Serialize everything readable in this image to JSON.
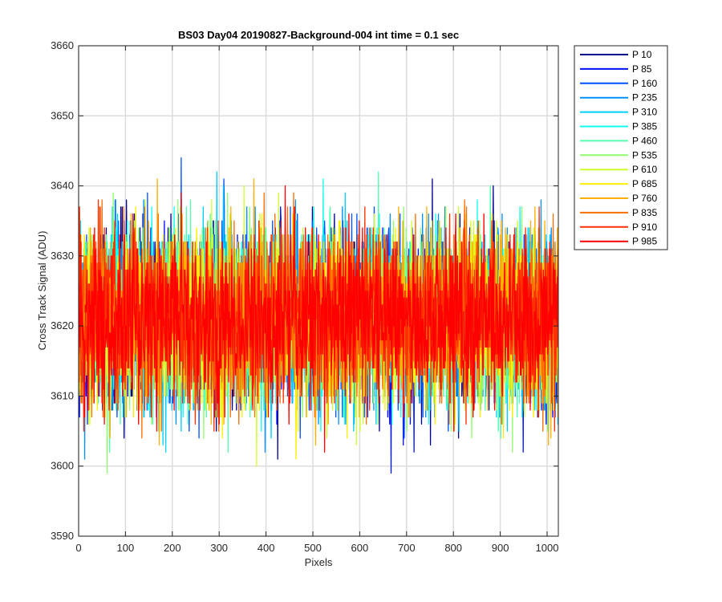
{
  "chart_data": {
    "type": "line",
    "title": "BS03 Day04 20190827-Background-004 int time = 0.1 sec",
    "xlabel": "Pixels",
    "ylabel": "Cross Track Signal (ADU)",
    "xlim": [
      0,
      1024
    ],
    "ylim": [
      3590,
      3660
    ],
    "xticks": [
      0,
      100,
      200,
      300,
      400,
      500,
      600,
      700,
      800,
      900,
      1000
    ],
    "yticks": [
      3590,
      3600,
      3610,
      3620,
      3630,
      3640,
      3650,
      3660
    ],
    "grid": true,
    "legend_position": "outside-top-right",
    "noise_mean": 3621,
    "noise_sigma": 6,
    "series": [
      {
        "name": "P 10",
        "color": "#00008f"
      },
      {
        "name": "P 85",
        "color": "#0010ff"
      },
      {
        "name": "P 160",
        "color": "#0050ff"
      },
      {
        "name": "P 235",
        "color": "#0090ff"
      },
      {
        "name": "P 310",
        "color": "#00d0ff"
      },
      {
        "name": "P 385",
        "color": "#10ffef"
      },
      {
        "name": "P 460",
        "color": "#50ffaf"
      },
      {
        "name": "P 535",
        "color": "#90ff6f"
      },
      {
        "name": "P 610",
        "color": "#d0ff2f"
      },
      {
        "name": "P 685",
        "color": "#ffef00"
      },
      {
        "name": "P 760",
        "color": "#ffaf00"
      },
      {
        "name": "P 835",
        "color": "#ff6f00"
      },
      {
        "name": "P 910",
        "color": "#ff2f00"
      },
      {
        "name": "P 985",
        "color": "#ff0000"
      }
    ]
  }
}
